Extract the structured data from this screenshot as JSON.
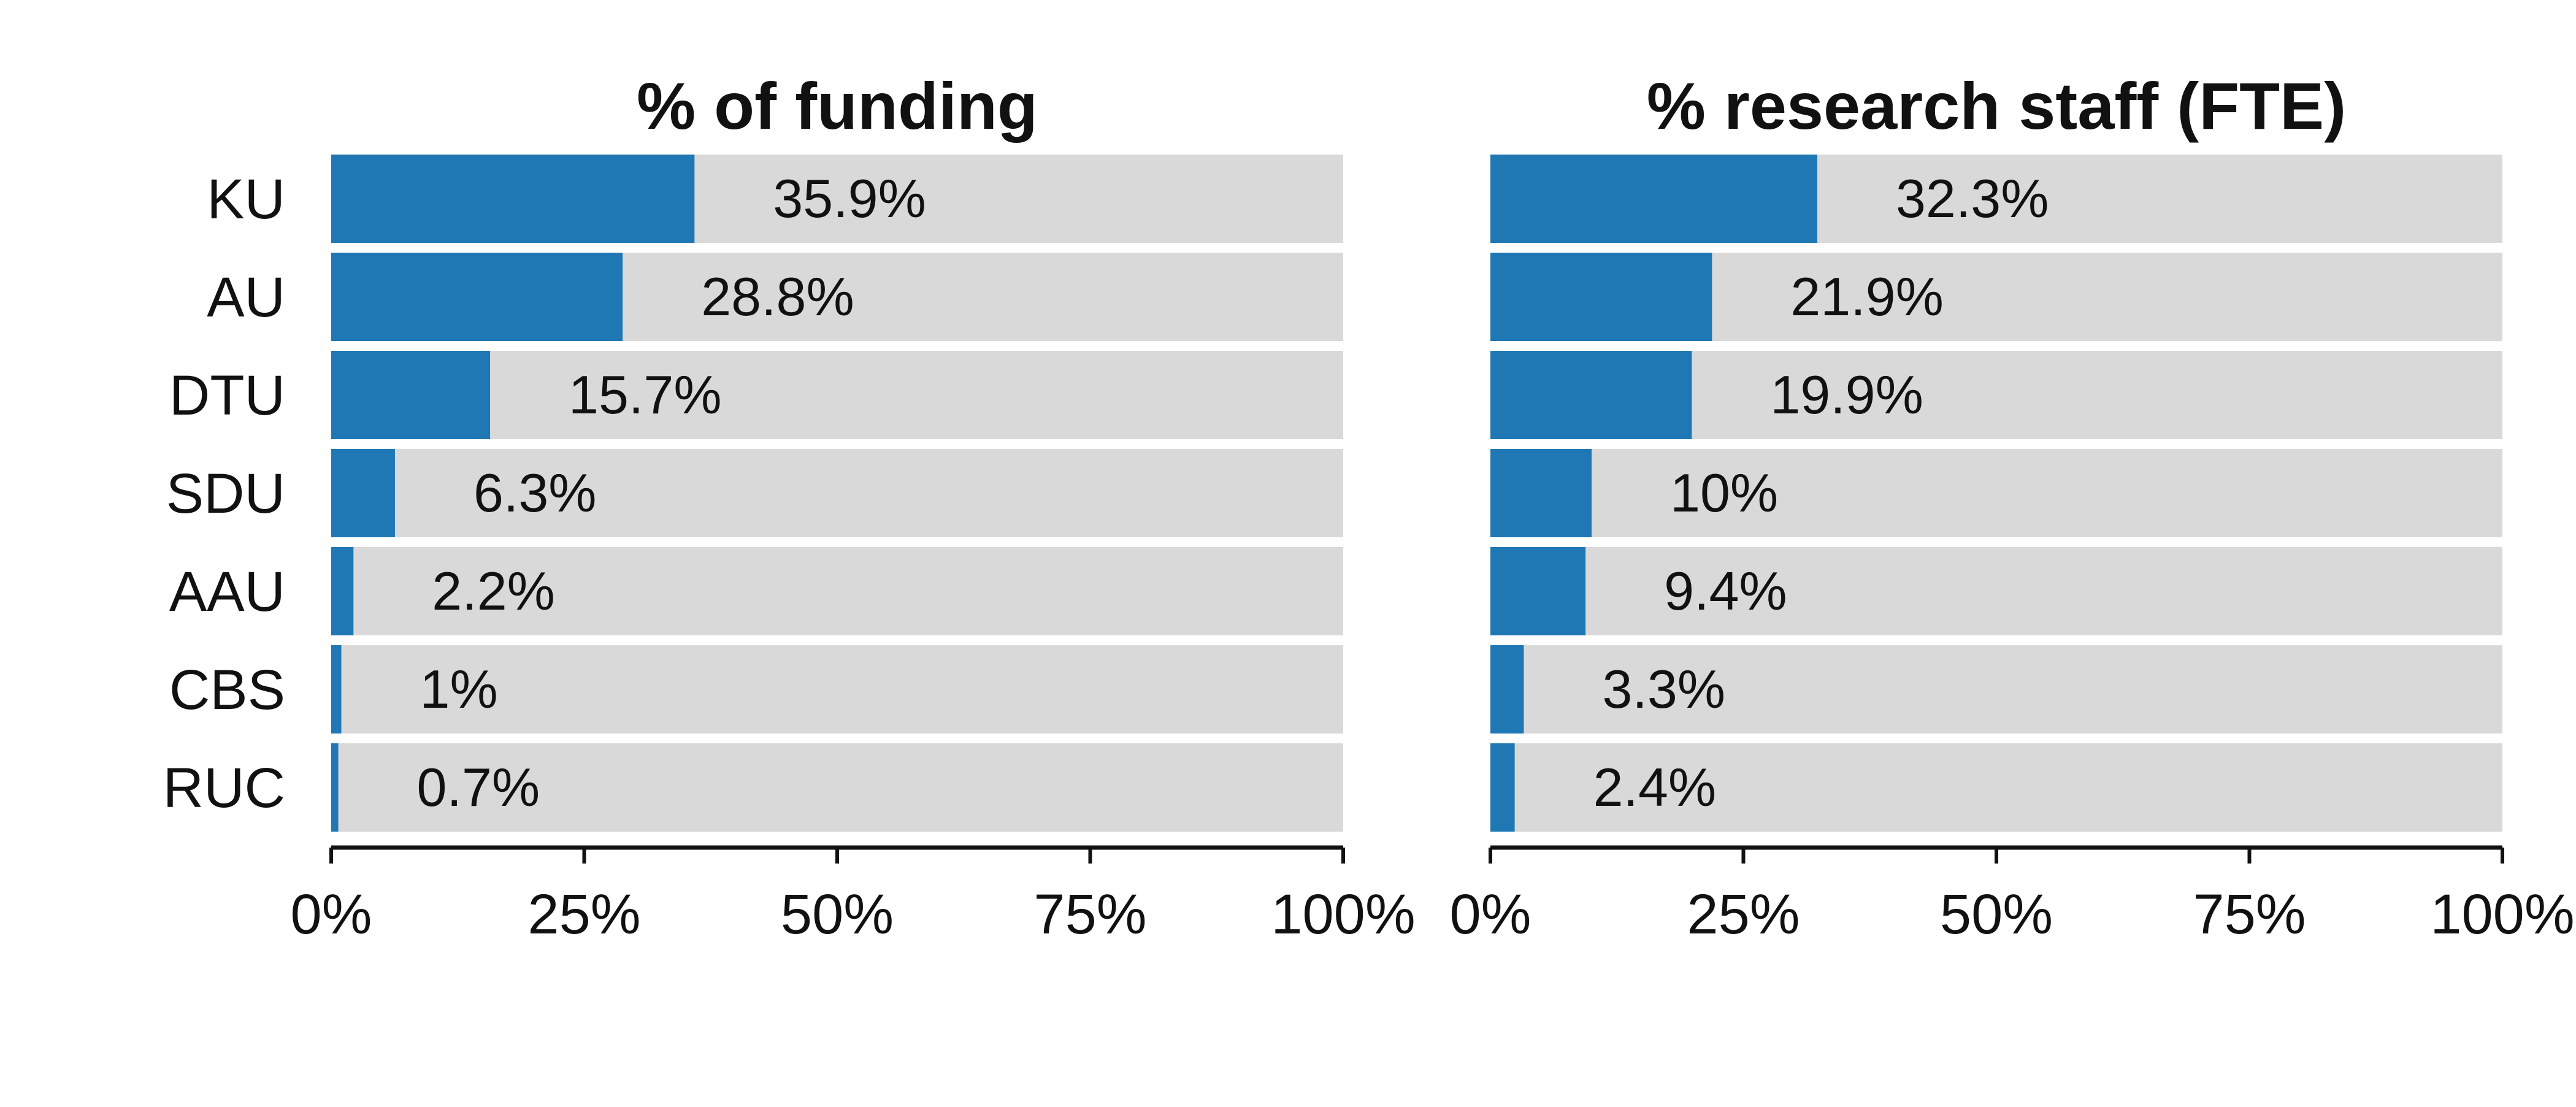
{
  "colors": {
    "bar": "#1f78b4",
    "track": "#d9d9d9",
    "axis": "#111111",
    "text": "#111111"
  },
  "chart_data": [
    {
      "type": "bar",
      "orientation": "horizontal",
      "title": "% of funding",
      "categories": [
        "KU",
        "AU",
        "DTU",
        "SDU",
        "AAU",
        "CBS",
        "RUC"
      ],
      "values": [
        35.9,
        28.8,
        15.7,
        6.3,
        2.2,
        1,
        0.7
      ],
      "value_labels": [
        "35.9%",
        "28.8%",
        "15.7%",
        "6.3%",
        "2.2%",
        "1%",
        "0.7%"
      ],
      "xlim": [
        0,
        100
      ],
      "xticks": [
        0,
        25,
        50,
        75,
        100
      ],
      "xtick_labels": [
        "0%",
        "25%",
        "50%",
        "75%",
        "100%"
      ],
      "background_track": true,
      "grid": false
    },
    {
      "type": "bar",
      "orientation": "horizontal",
      "title": "% research staff (FTE)",
      "categories": [
        "KU",
        "AU",
        "DTU",
        "SDU",
        "AAU",
        "CBS",
        "RUC"
      ],
      "values": [
        32.3,
        21.9,
        19.9,
        10,
        9.4,
        3.3,
        2.4
      ],
      "value_labels": [
        "32.3%",
        "21.9%",
        "19.9%",
        "10%",
        "9.4%",
        "3.3%",
        "2.4%"
      ],
      "xlim": [
        0,
        100
      ],
      "xticks": [
        0,
        25,
        50,
        75,
        100
      ],
      "xtick_labels": [
        "0%",
        "25%",
        "50%",
        "75%",
        "100%"
      ],
      "background_track": true,
      "grid": false
    }
  ]
}
